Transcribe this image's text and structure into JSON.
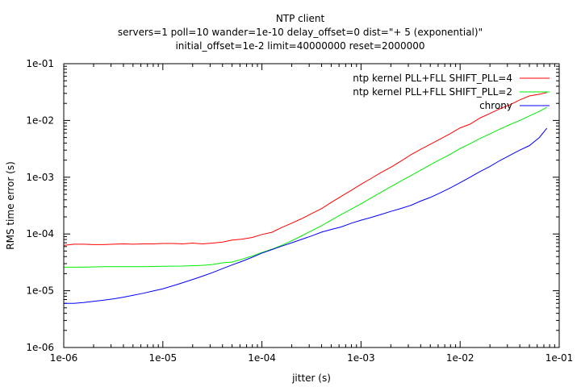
{
  "chart_data": {
    "type": "line",
    "title": "NTP client",
    "subtitle_lines": [
      "servers=1 poll=10 wander=1e-10 delay_offset=0 dist=\"+ 5 (exponential)\"",
      "initial_offset=1e-2 limit=40000000 reset=2000000"
    ],
    "xlabel": "jitter (s)",
    "ylabel": "RMS time error (s)",
    "x_scale": "log",
    "y_scale": "log",
    "xlim": [
      1e-06,
      0.1
    ],
    "ylim": [
      1e-06,
      0.1
    ],
    "x_ticks": [
      {
        "value": 1e-06,
        "label": "1e-06"
      },
      {
        "value": 1e-05,
        "label": "1e-05"
      },
      {
        "value": 0.0001,
        "label": "1e-04"
      },
      {
        "value": 0.001,
        "label": "1e-03"
      },
      {
        "value": 0.01,
        "label": "1e-02"
      },
      {
        "value": 0.1,
        "label": "1e-01"
      }
    ],
    "y_ticks": [
      {
        "value": 1e-06,
        "label": "1e-06"
      },
      {
        "value": 1e-05,
        "label": "1e-05"
      },
      {
        "value": 0.0001,
        "label": "1e-04"
      },
      {
        "value": 0.001,
        "label": "1e-03"
      },
      {
        "value": 0.01,
        "label": "1e-02"
      },
      {
        "value": 0.1,
        "label": "1e-01"
      }
    ],
    "grid": false,
    "legend_position": "top-right",
    "series": [
      {
        "name": "ntp kernel PLL+FLL SHIFT_PLL=4",
        "color": "#ff0000",
        "points": [
          [
            1e-06,
            6.3e-05
          ],
          [
            1.26e-06,
            6.6e-05
          ],
          [
            1.58e-06,
            6.6e-05
          ],
          [
            2e-06,
            6.5e-05
          ],
          [
            2.5e-06,
            6.5e-05
          ],
          [
            3.2e-06,
            6.6e-05
          ],
          [
            4e-06,
            6.7e-05
          ],
          [
            5e-06,
            6.6e-05
          ],
          [
            6.3e-06,
            6.7e-05
          ],
          [
            8e-06,
            6.7e-05
          ],
          [
            1e-05,
            6.8e-05
          ],
          [
            1.26e-05,
            6.8e-05
          ],
          [
            1.58e-05,
            6.7e-05
          ],
          [
            2e-05,
            6.9e-05
          ],
          [
            2.5e-05,
            6.7e-05
          ],
          [
            3.2e-05,
            6.9e-05
          ],
          [
            4e-05,
            7.2e-05
          ],
          [
            5e-05,
            7.8e-05
          ],
          [
            6.3e-05,
            8.1e-05
          ],
          [
            8e-05,
            8.7e-05
          ],
          [
            0.0001,
            9.8e-05
          ],
          [
            0.000126,
            0.000107
          ],
          [
            0.000158,
            0.00013
          ],
          [
            0.0002,
            0.000155
          ],
          [
            0.00025,
            0.000185
          ],
          [
            0.00032,
            0.00023
          ],
          [
            0.0004,
            0.00028
          ],
          [
            0.0005,
            0.00036
          ],
          [
            0.00063,
            0.00046
          ],
          [
            0.0008,
            0.00059
          ],
          [
            0.001,
            0.00075
          ],
          [
            0.00126,
            0.00095
          ],
          [
            0.00158,
            0.0012
          ],
          [
            0.002,
            0.0015
          ],
          [
            0.0025,
            0.0019
          ],
          [
            0.0032,
            0.0025
          ],
          [
            0.004,
            0.0031
          ],
          [
            0.005,
            0.0038
          ],
          [
            0.0063,
            0.0047
          ],
          [
            0.008,
            0.0059
          ],
          [
            0.01,
            0.0074
          ],
          [
            0.0126,
            0.0086
          ],
          [
            0.0158,
            0.011
          ],
          [
            0.02,
            0.0133
          ],
          [
            0.025,
            0.016
          ],
          [
            0.032,
            0.019
          ],
          [
            0.04,
            0.023
          ],
          [
            0.05,
            0.027
          ],
          [
            0.063,
            0.029
          ],
          [
            0.075,
            0.031
          ]
        ]
      },
      {
        "name": "ntp kernel PLL+FLL SHIFT_PLL=2",
        "color": "#00ee00",
        "points": [
          [
            1e-06,
            2.6e-05
          ],
          [
            1.58e-06,
            2.6e-05
          ],
          [
            2.5e-06,
            2.65e-05
          ],
          [
            4e-06,
            2.65e-05
          ],
          [
            6.3e-06,
            2.65e-05
          ],
          [
            1e-05,
            2.7e-05
          ],
          [
            1.58e-05,
            2.72e-05
          ],
          [
            2.5e-05,
            2.8e-05
          ],
          [
            3.2e-05,
            2.9e-05
          ],
          [
            4e-05,
            3.1e-05
          ],
          [
            5e-05,
            3.2e-05
          ],
          [
            6.3e-05,
            3.6e-05
          ],
          [
            8e-05,
            4.1e-05
          ],
          [
            0.0001,
            4.7e-05
          ],
          [
            0.000126,
            5.4e-05
          ],
          [
            0.000158,
            6.3e-05
          ],
          [
            0.0002,
            7.6e-05
          ],
          [
            0.00025,
            9.2e-05
          ],
          [
            0.00032,
            0.000115
          ],
          [
            0.0004,
            0.00014
          ],
          [
            0.0005,
            0.000175
          ],
          [
            0.00063,
            0.00022
          ],
          [
            0.0008,
            0.000275
          ],
          [
            0.001,
            0.00034
          ],
          [
            0.00126,
            0.00043
          ],
          [
            0.00158,
            0.00054
          ],
          [
            0.002,
            0.00068
          ],
          [
            0.0025,
            0.00085
          ],
          [
            0.0032,
            0.00107
          ],
          [
            0.004,
            0.00133
          ],
          [
            0.005,
            0.00165
          ],
          [
            0.0063,
            0.00205
          ],
          [
            0.008,
            0.00255
          ],
          [
            0.01,
            0.0032
          ],
          [
            0.0126,
            0.0039
          ],
          [
            0.0158,
            0.0048
          ],
          [
            0.02,
            0.0058
          ],
          [
            0.025,
            0.007
          ],
          [
            0.032,
            0.0085
          ],
          [
            0.04,
            0.01
          ],
          [
            0.05,
            0.012
          ],
          [
            0.063,
            0.0145
          ],
          [
            0.075,
            0.017
          ]
        ]
      },
      {
        "name": "chrony",
        "color": "#0000ff",
        "points": [
          [
            1e-06,
            6e-06
          ],
          [
            1.26e-06,
            6e-06
          ],
          [
            1.58e-06,
            6.2e-06
          ],
          [
            2e-06,
            6.5e-06
          ],
          [
            2.5e-06,
            6.8e-06
          ],
          [
            3.2e-06,
            7.2e-06
          ],
          [
            4e-06,
            7.7e-06
          ],
          [
            5e-06,
            8.3e-06
          ],
          [
            6.3e-06,
            9e-06
          ],
          [
            8e-06,
            9.9e-06
          ],
          [
            1e-05,
            1.08e-05
          ],
          [
            1.26e-05,
            1.22e-05
          ],
          [
            1.58e-05,
            1.38e-05
          ],
          [
            2e-05,
            1.58e-05
          ],
          [
            2.5e-05,
            1.8e-05
          ],
          [
            3.2e-05,
            2.1e-05
          ],
          [
            4e-05,
            2.45e-05
          ],
          [
            5e-05,
            2.85e-05
          ],
          [
            6.3e-05,
            3.3e-05
          ],
          [
            8e-05,
            3.9e-05
          ],
          [
            0.0001,
            4.6e-05
          ],
          [
            0.000126,
            5.3e-05
          ],
          [
            0.000158,
            6.1e-05
          ],
          [
            0.0002,
            7e-05
          ],
          [
            0.00025,
            8e-05
          ],
          [
            0.00032,
            9.3e-05
          ],
          [
            0.0004,
            0.000108
          ],
          [
            0.0005,
            0.00012
          ],
          [
            0.00063,
            0.000133
          ],
          [
            0.0008,
            0.000155
          ],
          [
            0.001,
            0.000175
          ],
          [
            0.00126,
            0.000195
          ],
          [
            0.00158,
            0.00022
          ],
          [
            0.002,
            0.00025
          ],
          [
            0.0025,
            0.00028
          ],
          [
            0.0032,
            0.00032
          ],
          [
            0.004,
            0.00038
          ],
          [
            0.005,
            0.00044
          ],
          [
            0.0063,
            0.00053
          ],
          [
            0.008,
            0.00065
          ],
          [
            0.01,
            0.0008
          ],
          [
            0.0126,
            0.001
          ],
          [
            0.0158,
            0.00125
          ],
          [
            0.02,
            0.00155
          ],
          [
            0.025,
            0.00195
          ],
          [
            0.032,
            0.00245
          ],
          [
            0.04,
            0.003
          ],
          [
            0.05,
            0.0036
          ],
          [
            0.063,
            0.005
          ],
          [
            0.075,
            0.0073
          ]
        ]
      }
    ]
  }
}
